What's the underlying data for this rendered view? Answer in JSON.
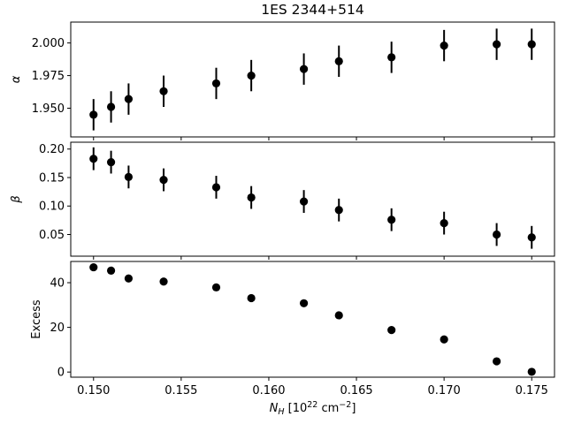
{
  "chart_data": {
    "type": "scatter",
    "title": "1ES 2344+514",
    "shared_x": {
      "label_main": "N",
      "label_sub": "H",
      "label_rest": " [10",
      "label_sup": "22",
      "label_unit": " cm",
      "label_unit_sup": "−2",
      "label_close": "]",
      "xlim": [
        0.1487,
        0.1763
      ],
      "ticks": [
        0.15,
        0.155,
        0.16,
        0.165,
        0.17,
        0.175
      ],
      "tick_labels": [
        "0.150",
        "0.155",
        "0.160",
        "0.165",
        "0.170",
        "0.175"
      ],
      "values": [
        0.15,
        0.151,
        0.152,
        0.154,
        0.157,
        0.159,
        0.162,
        0.164,
        0.167,
        0.17,
        0.173,
        0.175
      ]
    },
    "panels": [
      {
        "ylabel": "α",
        "ylim": [
          1.928,
          2.016
        ],
        "yticks": [
          1.95,
          1.975,
          2.0
        ],
        "ytick_labels": [
          "1.950",
          "1.975",
          "2.000"
        ],
        "y": [
          1.945,
          1.951,
          1.957,
          1.963,
          1.969,
          1.975,
          1.98,
          1.986,
          1.989,
          1.998,
          1.999,
          1.999
        ],
        "yerr": [
          0.012,
          0.012,
          0.012,
          0.012,
          0.012,
          0.012,
          0.012,
          0.012,
          0.012,
          0.012,
          0.012,
          0.012
        ]
      },
      {
        "ylabel": "β",
        "ylim": [
          0.012,
          0.212
        ],
        "yticks": [
          0.05,
          0.1,
          0.15,
          0.2
        ],
        "ytick_labels": [
          "0.05",
          "0.10",
          "0.15",
          "0.20"
        ],
        "y": [
          0.183,
          0.177,
          0.151,
          0.146,
          0.133,
          0.115,
          0.108,
          0.093,
          0.076,
          0.07,
          0.05,
          0.045
        ],
        "yerr": [
          0.02,
          0.02,
          0.02,
          0.02,
          0.02,
          0.02,
          0.02,
          0.02,
          0.02,
          0.02,
          0.02,
          0.02
        ]
      },
      {
        "ylabel": "Excess",
        "ylim": [
          -2.3,
          49.5
        ],
        "yticks": [
          0,
          20,
          40
        ],
        "ytick_labels": [
          "0",
          "20",
          "40"
        ],
        "y": [
          46.9,
          45.4,
          41.9,
          40.5,
          37.9,
          33.1,
          30.8,
          25.4,
          18.8,
          14.6,
          4.8,
          0.1
        ]
      }
    ],
    "marker_color": "#000000",
    "grid": false
  }
}
